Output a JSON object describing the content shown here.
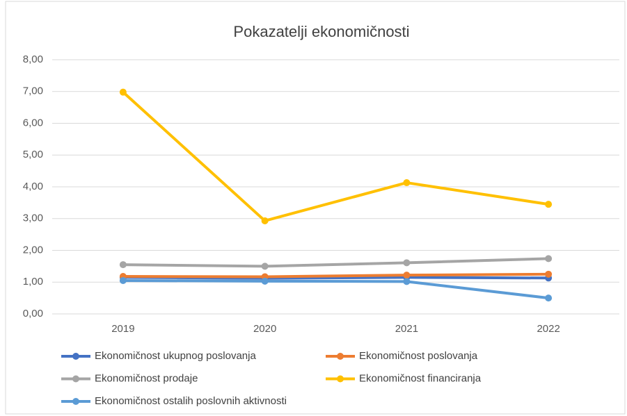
{
  "chart_data": {
    "type": "line",
    "title": "Pokazatelji ekonomičnosti",
    "categories": [
      "2019",
      "2020",
      "2021",
      "2022"
    ],
    "series": [
      {
        "name": "Ekonomičnost ukupnog poslovanja",
        "color": "#4472c4",
        "values": [
          1.15,
          1.12,
          1.15,
          1.13
        ]
      },
      {
        "name": "Ekonomičnost poslovanja",
        "color": "#ed7d31",
        "values": [
          1.18,
          1.17,
          1.22,
          1.25
        ]
      },
      {
        "name": "Ekonomičnost prodaje",
        "color": "#a5a5a5",
        "values": [
          1.55,
          1.5,
          1.61,
          1.74
        ]
      },
      {
        "name": "Ekonomičnost financiranja",
        "color": "#ffc000",
        "values": [
          6.98,
          2.93,
          4.13,
          3.45
        ]
      },
      {
        "name": "Ekonomičnost ostalih poslovnih aktivnosti",
        "color": "#5b9bd5",
        "values": [
          1.05,
          1.03,
          1.02,
          0.5
        ]
      }
    ],
    "ylim": [
      0,
      8
    ],
    "yticks": [
      {
        "value": 0,
        "label": "0,00"
      },
      {
        "value": 1,
        "label": "1,00"
      },
      {
        "value": 2,
        "label": "2,00"
      },
      {
        "value": 3,
        "label": "3,00"
      },
      {
        "value": 4,
        "label": "4,00"
      },
      {
        "value": 5,
        "label": "5,00"
      },
      {
        "value": 6,
        "label": "6,00"
      },
      {
        "value": 7,
        "label": "7,00"
      },
      {
        "value": 8,
        "label": "8,00"
      }
    ],
    "grid": true,
    "legend": "bottom"
  }
}
